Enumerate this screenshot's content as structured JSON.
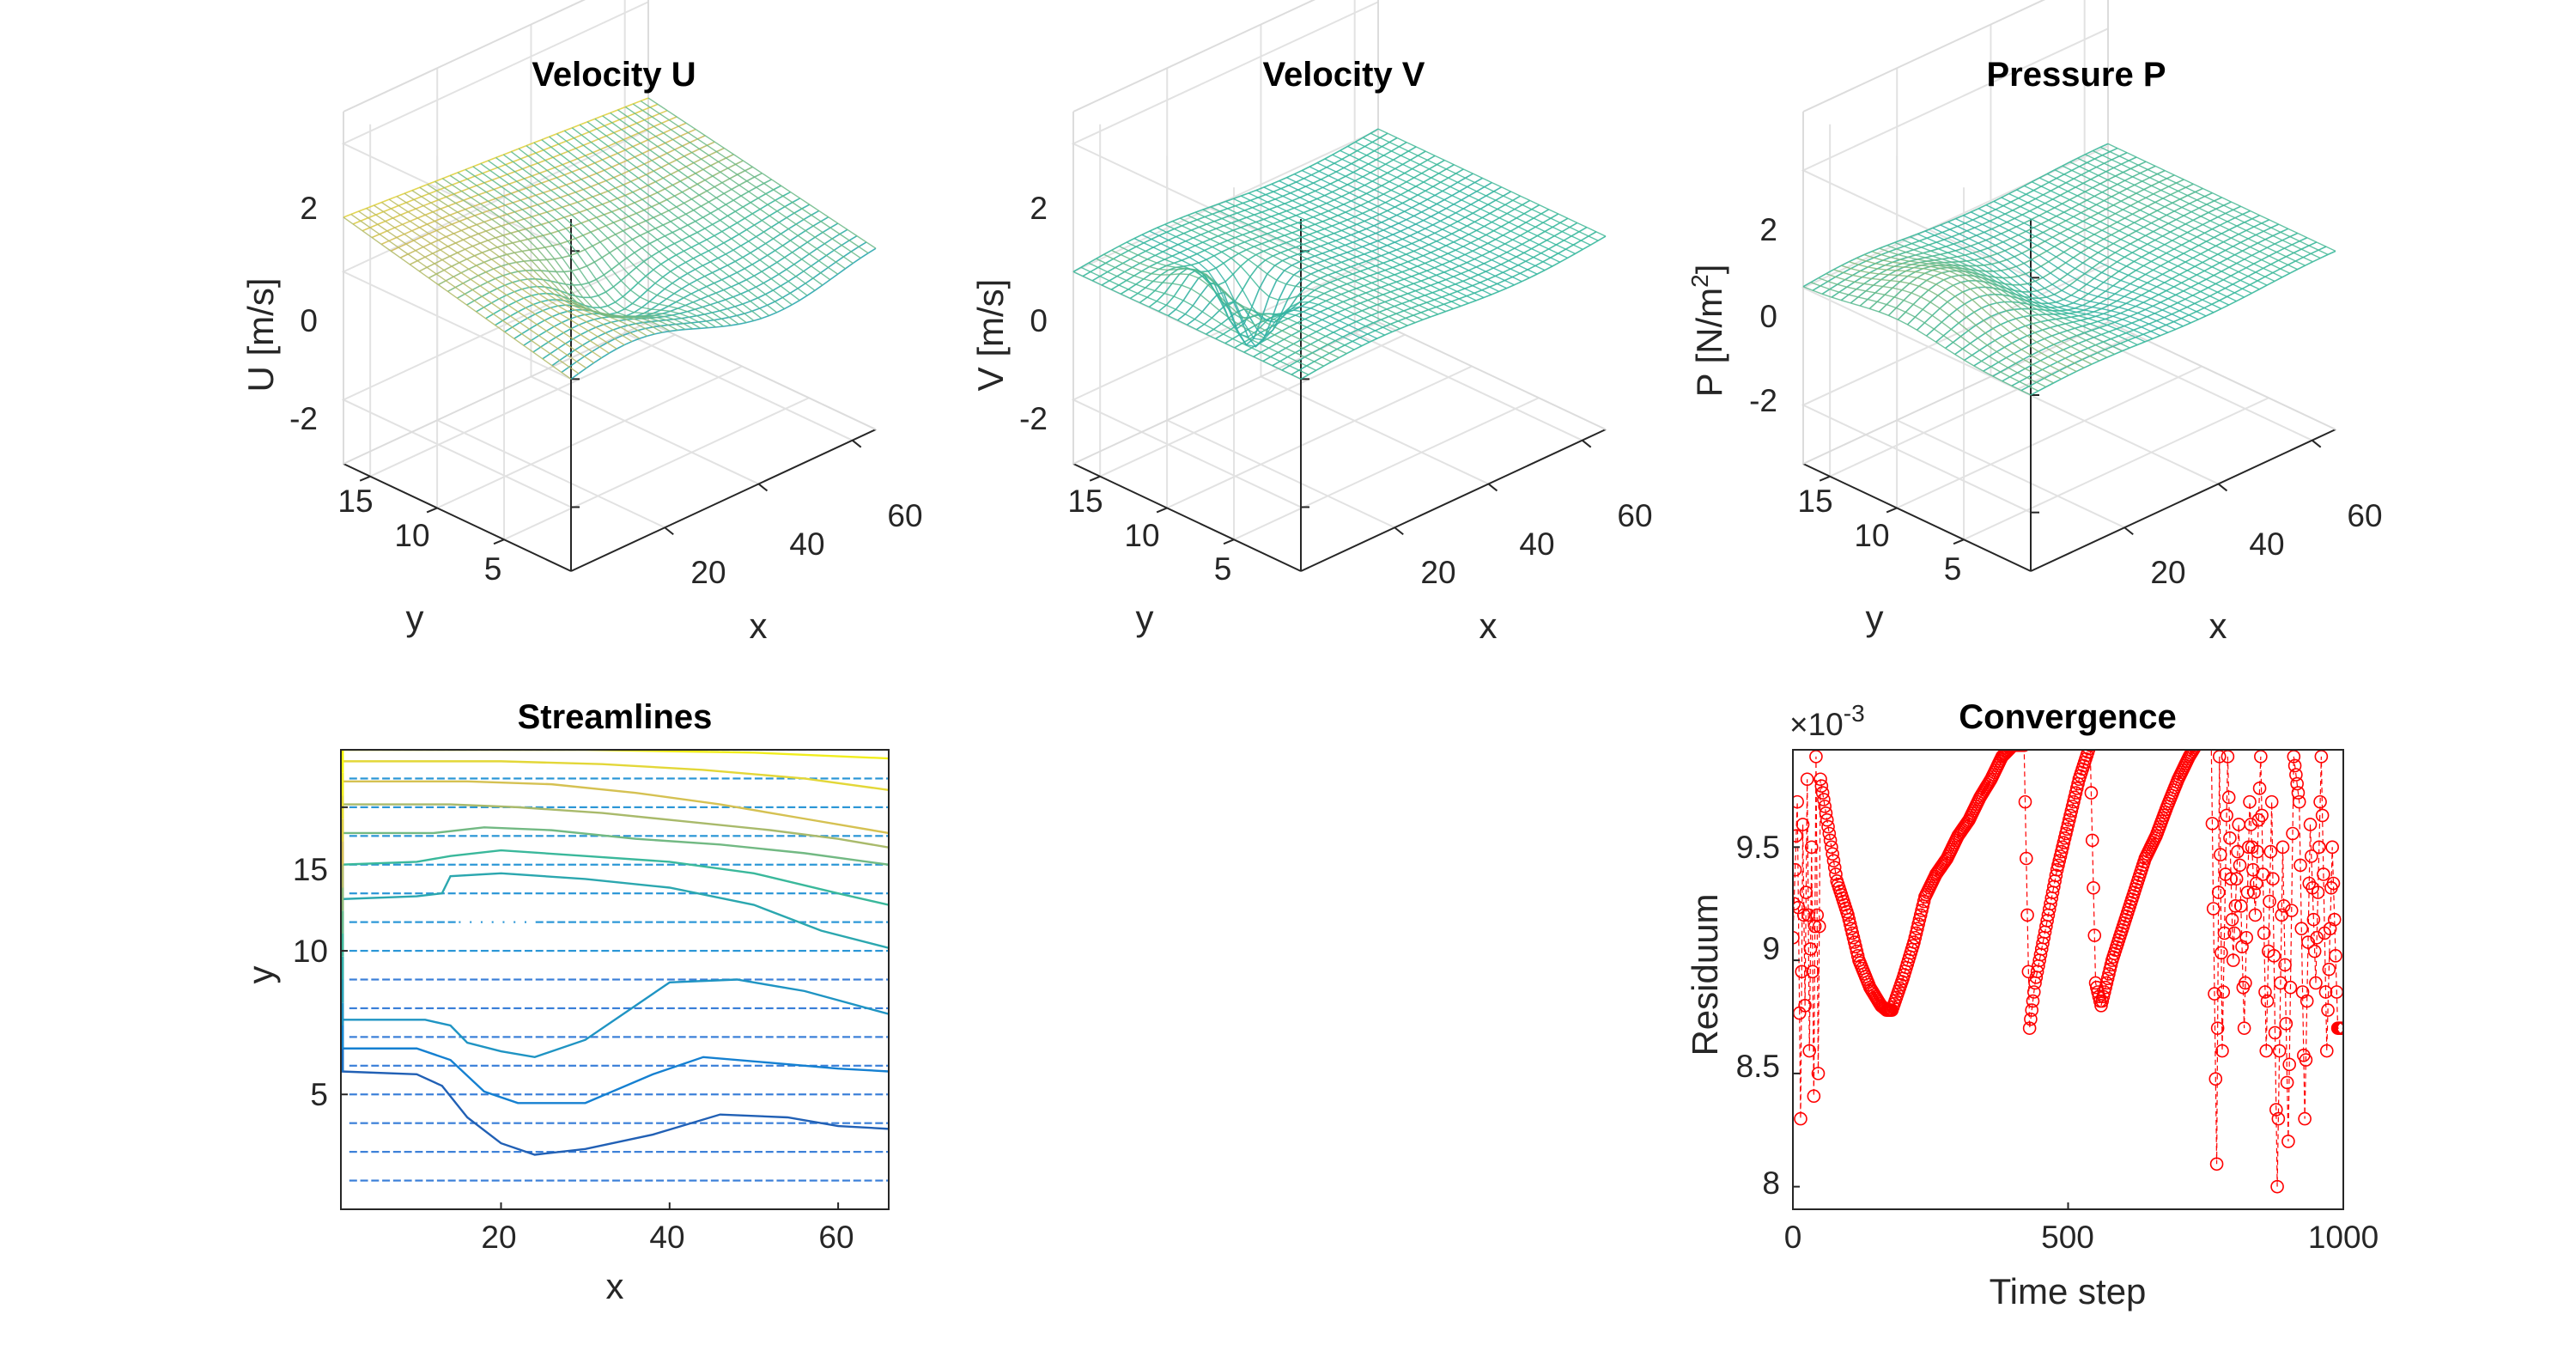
{
  "figure": {
    "panels": [
      {
        "title": "Velocity U",
        "zlabel_main": "U [m/s]",
        "zlabel_sup": "",
        "zlabel_tail": "",
        "xlabel": "x",
        "ylabel": "y",
        "zticks": [
          "2",
          "0",
          "-2"
        ],
        "xticks": [
          "20",
          "40",
          "60"
        ],
        "yticks": [
          "5",
          "10",
          "15"
        ]
      },
      {
        "title": "Velocity V",
        "zlabel_main": "V [m/s]",
        "zlabel_sup": "",
        "zlabel_tail": "",
        "xlabel": "x",
        "ylabel": "y",
        "zticks": [
          "2",
          "0",
          "-2"
        ],
        "xticks": [
          "20",
          "40",
          "60"
        ],
        "yticks": [
          "5",
          "10",
          "15"
        ]
      },
      {
        "title": "Pressure P",
        "zlabel_main": "P [N/m",
        "zlabel_sup": "2",
        "zlabel_tail": "]",
        "xlabel": "x",
        "ylabel": "y",
        "zticks": [
          "2",
          "0",
          "-2"
        ],
        "xticks": [
          "20",
          "40",
          "60"
        ],
        "yticks": [
          "5",
          "10",
          "15"
        ]
      }
    ],
    "streamlines": {
      "title": "Streamlines",
      "xlabel": "x",
      "ylabel": "y",
      "xticks": [
        "20",
        "40",
        "60"
      ],
      "yticks": [
        "15",
        "10",
        "5"
      ]
    },
    "convergence": {
      "title": "Convergence",
      "xlabel": "Time step",
      "ylabel": "Residuum",
      "exponent_base": "×10",
      "exponent_power": "-3",
      "xticks": [
        "0",
        "500",
        "1000"
      ],
      "yticks": [
        "9.5",
        "9",
        "8.5",
        "8"
      ]
    }
  },
  "chart_data": [
    {
      "type": "surface",
      "title": "Velocity U",
      "xlabel": "x",
      "ylabel": "y",
      "zlabel": "U [m/s]",
      "xlim": [
        0,
        65
      ],
      "ylim": [
        0,
        17
      ],
      "zlim": [
        -3,
        2.5
      ],
      "colormap": "parula",
      "grid": true
    },
    {
      "type": "surface",
      "title": "Velocity V",
      "xlabel": "x",
      "ylabel": "y",
      "zlabel": "V [m/s]",
      "xlim": [
        0,
        65
      ],
      "ylim": [
        0,
        17
      ],
      "zlim": [
        -3,
        2.5
      ],
      "colormap": "parula",
      "grid": true
    },
    {
      "type": "surface",
      "title": "Pressure P",
      "xlabel": "x",
      "ylabel": "y",
      "zlabel": "P [N/m^2]",
      "xlim": [
        0,
        65
      ],
      "ylim": [
        0,
        17
      ],
      "zlim": [
        -3,
        3
      ],
      "colormap": "parula",
      "grid": true
    },
    {
      "type": "streamlines",
      "title": "Streamlines",
      "xlabel": "x",
      "ylabel": "y",
      "xlim": [
        1,
        66
      ],
      "ylim": [
        1,
        17
      ],
      "grid": false,
      "series": [
        {
          "points": [
            [
              1,
              5.8
            ],
            [
              10,
              5.7
            ],
            [
              13,
              5.3
            ],
            [
              16,
              4.2
            ],
            [
              20,
              3.3
            ],
            [
              24,
              2.9
            ],
            [
              30,
              3.1
            ],
            [
              38,
              3.6
            ],
            [
              46,
              4.3
            ],
            [
              54,
              4.2
            ],
            [
              60,
              3.9
            ],
            [
              66,
              3.8
            ]
          ]
        },
        {
          "points": [
            [
              1,
              6.6
            ],
            [
              10,
              6.6
            ],
            [
              14,
              6.2
            ],
            [
              18,
              5.1
            ],
            [
              22,
              4.7
            ],
            [
              30,
              4.7
            ],
            [
              38,
              5.7
            ],
            [
              44,
              6.3
            ],
            [
              52,
              6.1
            ],
            [
              60,
              5.9
            ],
            [
              66,
              5.8
            ]
          ]
        },
        {
          "points": [
            [
              1,
              7.6
            ],
            [
              11,
              7.6
            ],
            [
              14,
              7.4
            ],
            [
              16,
              6.8
            ],
            [
              20,
              6.5
            ],
            [
              24,
              6.3
            ],
            [
              30,
              6.9
            ],
            [
              36,
              8.1
            ],
            [
              40,
              8.9
            ],
            [
              48,
              9.0
            ],
            [
              56,
              8.6
            ],
            [
              66,
              7.8
            ]
          ]
        },
        {
          "points": [
            [
              1,
              11.8
            ],
            [
              10,
              11.9
            ],
            [
              13,
              12.0
            ],
            [
              14,
              12.6
            ],
            [
              20,
              12.7
            ],
            [
              30,
              12.5
            ],
            [
              40,
              12.2
            ],
            [
              50,
              11.6
            ],
            [
              58,
              10.7
            ],
            [
              66,
              10.1
            ]
          ]
        },
        {
          "points": [
            [
              1,
              13.0
            ],
            [
              10,
              13.1
            ],
            [
              14,
              13.3
            ],
            [
              20,
              13.5
            ],
            [
              30,
              13.3
            ],
            [
              40,
              13.1
            ],
            [
              50,
              12.7
            ],
            [
              60,
              12.0
            ],
            [
              66,
              11.6
            ]
          ]
        },
        {
          "points": [
            [
              1,
              14.1
            ],
            [
              12,
              14.1
            ],
            [
              18,
              14.3
            ],
            [
              26,
              14.2
            ],
            [
              36,
              13.9
            ],
            [
              46,
              13.7
            ],
            [
              56,
              13.4
            ],
            [
              66,
              13.0
            ]
          ]
        },
        {
          "points": [
            [
              1,
              15.1
            ],
            [
              14,
              15.1
            ],
            [
              22,
              15.0
            ],
            [
              32,
              14.8
            ],
            [
              42,
              14.5
            ],
            [
              52,
              14.2
            ],
            [
              60,
              13.9
            ],
            [
              66,
              13.6
            ]
          ]
        },
        {
          "points": [
            [
              1,
              15.9
            ],
            [
              16,
              15.9
            ],
            [
              26,
              15.8
            ],
            [
              36,
              15.5
            ],
            [
              46,
              15.1
            ],
            [
              56,
              14.6
            ],
            [
              66,
              14.1
            ]
          ]
        },
        {
          "points": [
            [
              1,
              16.6
            ],
            [
              20,
              16.6
            ],
            [
              32,
              16.5
            ],
            [
              44,
              16.3
            ],
            [
              56,
              16.0
            ],
            [
              66,
              15.6
            ]
          ]
        },
        {
          "points": [
            [
              1,
              17.0
            ],
            [
              30,
              17.0
            ],
            [
              50,
              16.9
            ],
            [
              66,
              16.7
            ]
          ]
        }
      ]
    },
    {
      "type": "line",
      "title": "Convergence",
      "xlabel": "Time step",
      "ylabel": "Residuum",
      "xlim": [
        0,
        1000
      ],
      "ylim": [
        7.9,
        9.93
      ],
      "y_exponent": -3,
      "marker": "circle",
      "color": "#ff0000",
      "series": [
        {
          "x": [
            0,
            8,
            14,
            18,
            22,
            26,
            30,
            34,
            38,
            42,
            46,
            50,
            60,
            80,
            100,
            120,
            140,
            160,
            170,
            180,
            200,
            220,
            240,
            260,
            280,
            300,
            320,
            340,
            360,
            380,
            400,
            420,
            430,
            440,
            460,
            480,
            500,
            520,
            540,
            550,
            560,
            580,
            600,
            620,
            640,
            660,
            680,
            700,
            720,
            740,
            760,
            770,
            775,
            780,
            790,
            800,
            810,
            820,
            830,
            840,
            850,
            860,
            870,
            880,
            890,
            900,
            910,
            920,
            930,
            940,
            950,
            960,
            970,
            980,
            990,
            1000
          ],
          "y": [
            9.1,
            9.7,
            8.3,
            9.6,
            8.8,
            9.8,
            8.6,
            9.5,
            8.4,
            9.9,
            8.5,
            9.8,
            9.65,
            9.35,
            9.2,
            9.0,
            8.88,
            8.8,
            8.78,
            8.78,
            8.92,
            9.08,
            9.28,
            9.38,
            9.45,
            9.55,
            9.62,
            9.72,
            9.8,
            9.9,
            9.95,
            9.95,
            8.7,
            8.9,
            9.15,
            9.4,
            9.6,
            9.8,
            9.95,
            8.9,
            8.8,
            9.0,
            9.15,
            9.3,
            9.45,
            9.55,
            9.68,
            9.8,
            9.9,
            9.98,
            9.98,
            8.1,
            9.9,
            8.6,
            9.9,
            9.0,
            9.6,
            8.7,
            9.7,
            9.2,
            9.9,
            8.6,
            9.7,
            8.0,
            9.5,
            8.2,
            9.9,
            9.7,
            8.3,
            9.6,
            8.9,
            9.9,
            8.6,
            9.5,
            8.7,
            8.7
          ]
        }
      ]
    }
  ]
}
